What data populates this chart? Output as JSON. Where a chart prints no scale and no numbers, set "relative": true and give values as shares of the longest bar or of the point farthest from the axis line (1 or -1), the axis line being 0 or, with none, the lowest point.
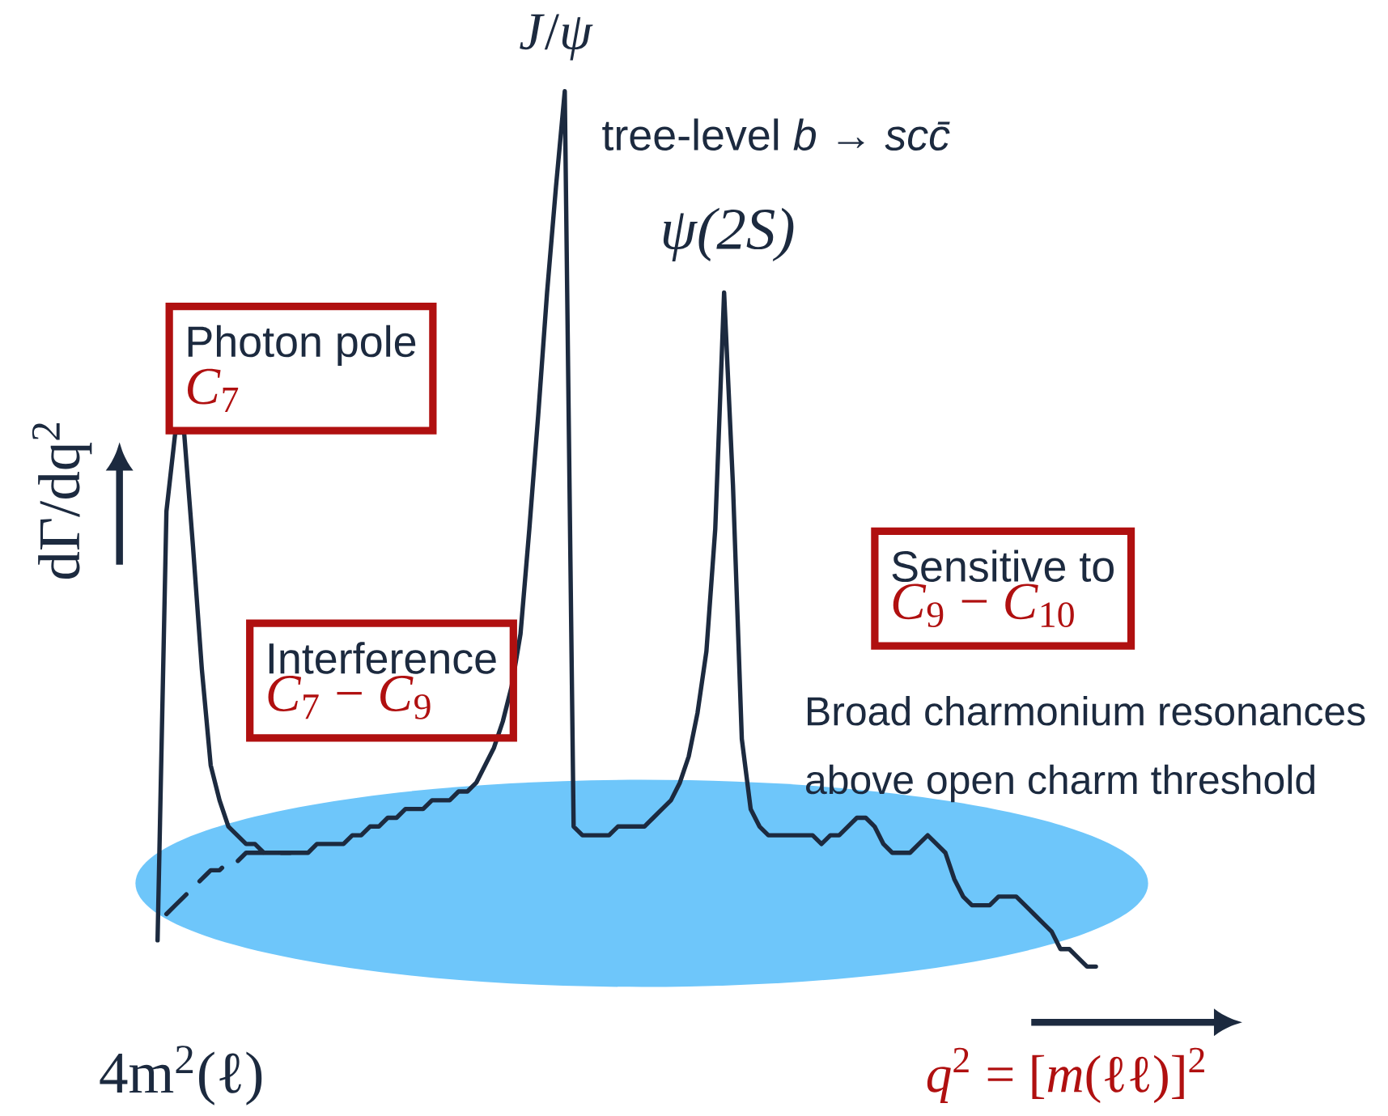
{
  "chart_data": {
    "type": "line",
    "relative": true,
    "xlabel": "*q*$^{2}$ = [*m*(ℓℓ)]$^{2}$",
    "ylabel": "dΓ/dq$^{2}$",
    "categories": [
      null,
      null,
      null,
      null,
      null,
      null,
      null,
      null,
      null,
      null,
      null,
      null,
      null,
      null,
      null,
      null,
      null,
      null,
      null,
      null,
      null,
      null,
      null,
      null,
      null,
      null,
      null,
      null,
      null,
      null,
      null,
      null,
      null,
      null,
      null,
      null,
      null,
      null,
      null,
      null,
      null,
      null,
      null,
      null,
      null,
      null,
      null,
      null,
      null,
      null,
      null,
      null,
      null,
      null,
      null,
      null,
      null,
      null,
      null,
      null,
      null,
      null,
      null,
      null,
      null,
      null,
      null,
      null,
      null,
      null,
      null,
      null,
      null,
      null,
      null,
      null,
      null,
      null,
      null,
      null,
      null,
      null,
      null,
      null,
      null,
      null,
      null,
      null,
      null,
      null,
      null,
      null,
      null,
      null,
      null,
      null,
      null,
      null,
      null,
      null,
      null,
      null,
      null,
      null,
      null,
      null,
      null
    ],
    "series": [
      {
        "color": "#1c2a3f",
        "values": [
          0.03,
          0.52,
          0.61,
          0.61,
          0.48,
          0.34,
          0.23,
          0.19,
          0.16,
          0.15,
          0.14,
          0.14,
          0.13,
          0.13,
          0.13,
          0.13,
          0.13,
          0.13,
          0.14,
          0.14,
          0.14,
          0.14,
          0.15,
          0.15,
          0.16,
          0.16,
          0.17,
          0.17,
          0.18,
          0.18,
          0.18,
          0.19,
          0.19,
          0.19,
          0.2,
          0.2,
          0.21,
          0.23,
          0.25,
          0.28,
          0.32,
          0.38,
          0.5,
          0.63,
          0.77,
          0.89,
          1.0,
          0.16,
          0.15,
          0.15,
          0.15,
          0.15,
          0.16,
          0.16,
          0.16,
          0.16,
          0.17,
          0.18,
          0.19,
          0.21,
          0.24,
          0.29,
          0.36,
          0.5,
          0.77,
          0.55,
          0.26,
          0.18,
          0.16,
          0.15,
          0.15,
          0.15,
          0.15,
          0.15,
          0.15,
          0.14,
          0.15,
          0.15,
          0.16,
          0.17,
          0.17,
          0.16,
          0.14,
          0.13,
          0.13,
          0.13,
          0.14,
          0.15,
          0.14,
          0.13,
          0.1,
          0.08,
          0.07,
          0.07,
          0.07,
          0.08,
          0.08,
          0.08,
          0.07,
          0.06,
          0.05,
          0.04,
          0.02,
          0.02,
          0.01,
          0.0,
          0
        ]
      },
      {
        "color": "#1c2a3f",
        "line_style": "dashed",
        "values": [
          null,
          0.06,
          0.07,
          0.08,
          0.09,
          0.1,
          0.11,
          0.11,
          0.12,
          0.12,
          0.13,
          0.13,
          0.13,
          0.13,
          0.13,
          0.13,
          null,
          null,
          null,
          null,
          null,
          null,
          null,
          null,
          null,
          null,
          null,
          null,
          null,
          null,
          null,
          null,
          null,
          null,
          null,
          null,
          null,
          null,
          null,
          null,
          null,
          null,
          null,
          null,
          null,
          null,
          null,
          null,
          null,
          null,
          null,
          null,
          null,
          null,
          null,
          null,
          null,
          null,
          null,
          null,
          null,
          null,
          null,
          null,
          null,
          null,
          null,
          null,
          null,
          null,
          null,
          null,
          null,
          null,
          null,
          null,
          null,
          null,
          null,
          null,
          null,
          null,
          null,
          null,
          null,
          null,
          null,
          null,
          null,
          null,
          null,
          null,
          null,
          null,
          null,
          null,
          null,
          null,
          null,
          null,
          null,
          null,
          null,
          null,
          null,
          null,
          null
        ]
      }
    ],
    "annotations": [
      "*J*/*ψ*",
      "tree-level *b* → *scc̄*",
      "ψ(2S)",
      "Photon pole",
      "*C*$_{7}$",
      "Interference",
      "*C*$_{7}$ − *C*$_{9}$",
      "Sensitive to",
      "*C*$_{9}$ − *C*$_{10}$",
      "Broad charmonium resonances",
      "above open charm threshold",
      "4m$^{2}$(ℓ)"
    ]
  }
}
